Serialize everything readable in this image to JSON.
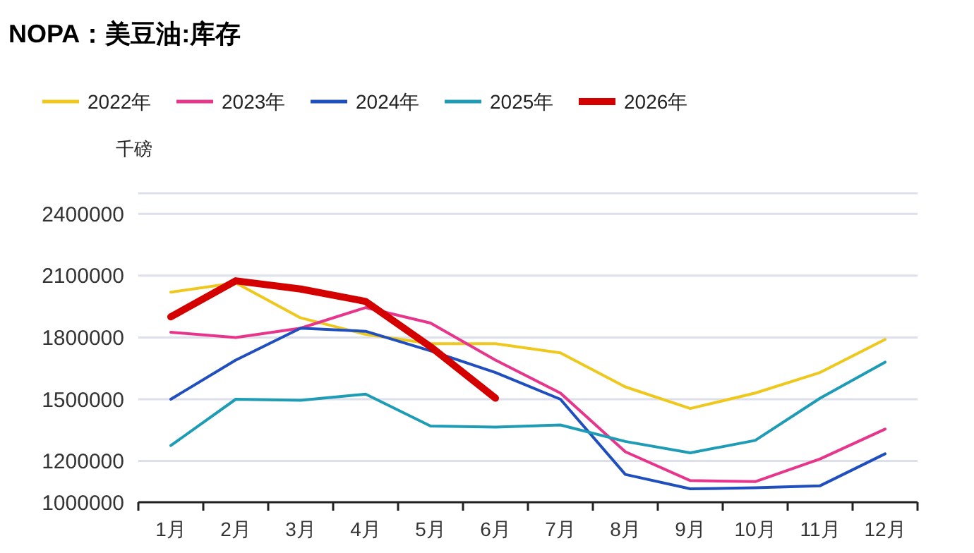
{
  "chart_data": {
    "type": "line",
    "title": "NOPA：美豆油:库存",
    "ylabel": "千磅",
    "categories": [
      "1月",
      "2月",
      "3月",
      "4月",
      "5月",
      "6月",
      "7月",
      "8月",
      "9月",
      "10月",
      "11月",
      "12月"
    ],
    "series": [
      {
        "name": "2022年",
        "color": "#eec81c",
        "values": [
          2020000,
          2065000,
          1895000,
          1815000,
          1770000,
          1770000,
          1725000,
          1560000,
          1455000,
          1530000,
          1630000,
          1790000
        ]
      },
      {
        "name": "2023年",
        "color": "#e8358c",
        "values": [
          1825000,
          1800000,
          1845000,
          1945000,
          1870000,
          1690000,
          1530000,
          1245000,
          1105000,
          1100000,
          1210000,
          1355000
        ]
      },
      {
        "name": "2024年",
        "color": "#1f4fbf",
        "values": [
          1500000,
          1690000,
          1845000,
          1830000,
          1735000,
          1630000,
          1500000,
          1135000,
          1065000,
          1070000,
          1080000,
          1235000
        ]
      },
      {
        "name": "2025年",
        "color": "#1e9bb5",
        "values": [
          1275000,
          1500000,
          1495000,
          1525000,
          1370000,
          1365000,
          1375000,
          1295000,
          1240000,
          1300000,
          1505000,
          1680000
        ]
      },
      {
        "name": "2026年",
        "color": "#d40000",
        "values": [
          1900000,
          2075000,
          2035000,
          1975000,
          1755000,
          1505000,
          null,
          null,
          null,
          null,
          null,
          null
        ]
      }
    ],
    "ylim": [
      1000000,
      2500000
    ],
    "yticks": [
      1000000,
      1200000,
      1500000,
      1800000,
      2100000,
      2400000
    ],
    "grid": "y",
    "legend": "top left",
    "marker": "none",
    "line_style": "solid"
  }
}
